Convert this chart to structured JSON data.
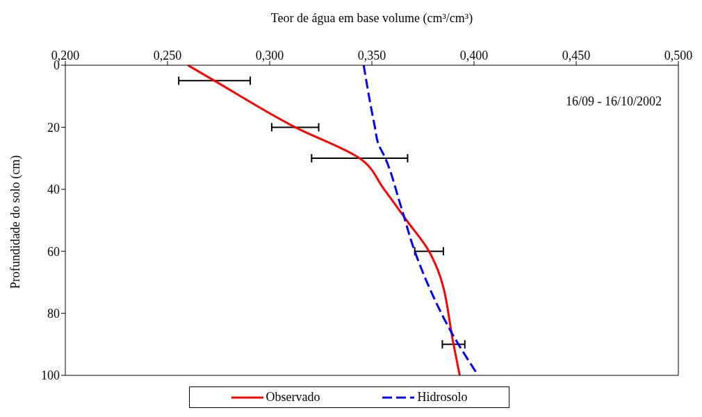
{
  "chart_data": {
    "type": "line",
    "orientation": "horizontal",
    "xlabel": "Teor de água em base volume (cm³/cm³)",
    "ylabel": "Profundidade do solo (cm)",
    "xlim": [
      0.2,
      0.5
    ],
    "xticks": [
      {
        "value": 0.2,
        "label": "0,200"
      },
      {
        "value": 0.25,
        "label": "0,250"
      },
      {
        "value": 0.3,
        "label": "0,300"
      },
      {
        "value": 0.35,
        "label": "0,350"
      },
      {
        "value": 0.4,
        "label": "0,400"
      },
      {
        "value": 0.45,
        "label": "0,450"
      },
      {
        "value": 0.5,
        "label": "0,500"
      }
    ],
    "ylim": [
      100,
      0
    ],
    "yticks": [
      0,
      20,
      40,
      60,
      80,
      100
    ],
    "series": [
      {
        "name": "Observado",
        "color": "#ff0000",
        "line_style": "solid",
        "x": [
          0,
          5,
          20,
          30,
          40,
          50,
          60,
          64,
          90,
          100
        ],
        "values": [
          0.26,
          0.273,
          0.3125,
          0.344,
          0.356,
          0.367,
          0.378,
          0.381,
          0.39,
          0.393
        ],
        "errors": [
          null,
          0.0175,
          0.0115,
          0.0235,
          null,
          null,
          0.007,
          null,
          0.0055,
          null
        ]
      },
      {
        "name": "Hidrosolo",
        "color": "#0000ff",
        "line_style": "dashed",
        "x": [
          0,
          15,
          20,
          25,
          30,
          45,
          60,
          70,
          85,
          100
        ],
        "values": [
          0.346,
          0.35,
          0.3515,
          0.353,
          0.3566,
          0.364,
          0.371,
          0.377,
          0.388,
          0.402
        ]
      }
    ],
    "annotations": [
      "16/09 - 16/10/2002"
    ],
    "legend": "bottom",
    "marker": "none",
    "grid": false
  }
}
